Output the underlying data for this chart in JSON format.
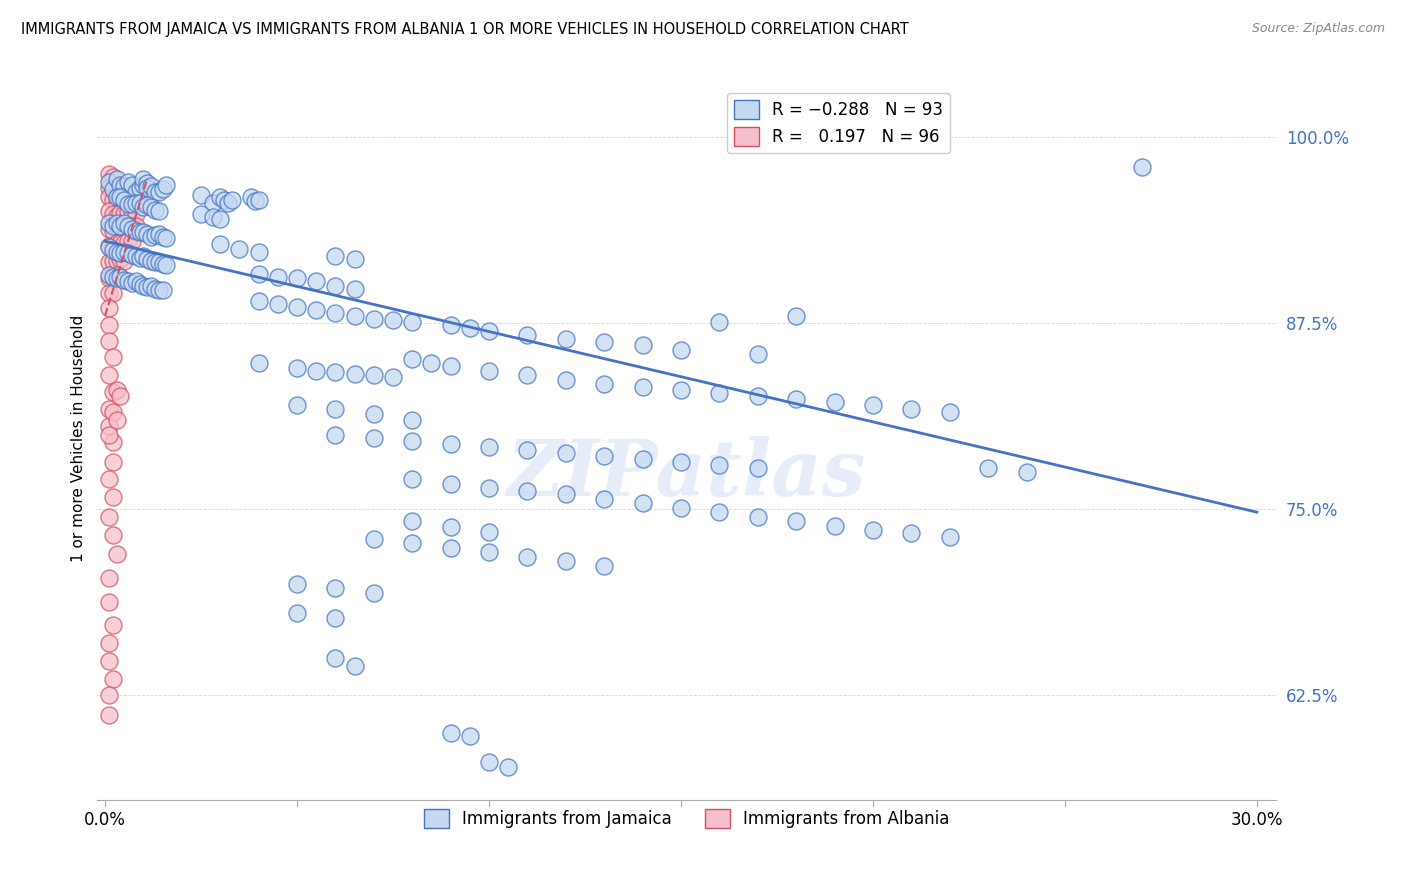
{
  "title": "IMMIGRANTS FROM JAMAICA VS IMMIGRANTS FROM ALBANIA 1 OR MORE VEHICLES IN HOUSEHOLD CORRELATION CHART",
  "source": "Source: ZipAtlas.com",
  "ylabel": "1 or more Vehicles in Household",
  "ytick_labels": [
    "62.5%",
    "75.0%",
    "87.5%",
    "100.0%"
  ],
  "ytick_values": [
    0.625,
    0.75,
    0.875,
    1.0
  ],
  "xlim": [
    -0.002,
    0.305
  ],
  "ylim": [
    0.555,
    1.04
  ],
  "jamaica_color": "#c5d9f0",
  "albania_color": "#f5c0cb",
  "jamaica_line_color": "#4472c4",
  "albania_line_color": "#d45060",
  "watermark": "ZIPatlas",
  "jamaica_trendline_x": [
    0.0,
    0.3
  ],
  "jamaica_trendline_y": [
    0.93,
    0.748
  ],
  "albania_trendline_x": [
    0.0,
    0.011
  ],
  "albania_trendline_y": [
    0.88,
    0.972
  ],
  "xtick_positions": [
    0.0,
    0.05,
    0.1,
    0.15,
    0.2,
    0.25,
    0.3
  ],
  "xtick_labels": [
    "0.0%",
    "",
    "",
    "",
    "",
    "",
    "30.0%"
  ],
  "jamaica_points": [
    [
      0.001,
      0.97
    ],
    [
      0.002,
      0.965
    ],
    [
      0.003,
      0.972
    ],
    [
      0.004,
      0.968
    ],
    [
      0.005,
      0.967
    ],
    [
      0.006,
      0.97
    ],
    [
      0.007,
      0.968
    ],
    [
      0.008,
      0.963
    ],
    [
      0.009,
      0.966
    ],
    [
      0.01,
      0.968
    ],
    [
      0.01,
      0.972
    ],
    [
      0.011,
      0.969
    ],
    [
      0.011,
      0.966
    ],
    [
      0.012,
      0.967
    ],
    [
      0.013,
      0.963
    ],
    [
      0.014,
      0.963
    ],
    [
      0.015,
      0.965
    ],
    [
      0.016,
      0.968
    ],
    [
      0.003,
      0.96
    ],
    [
      0.004,
      0.96
    ],
    [
      0.005,
      0.958
    ],
    [
      0.006,
      0.955
    ],
    [
      0.007,
      0.955
    ],
    [
      0.008,
      0.956
    ],
    [
      0.009,
      0.956
    ],
    [
      0.01,
      0.953
    ],
    [
      0.011,
      0.954
    ],
    [
      0.012,
      0.953
    ],
    [
      0.013,
      0.951
    ],
    [
      0.014,
      0.95
    ],
    [
      0.001,
      0.942
    ],
    [
      0.002,
      0.94
    ],
    [
      0.003,
      0.942
    ],
    [
      0.004,
      0.94
    ],
    [
      0.005,
      0.942
    ],
    [
      0.006,
      0.94
    ],
    [
      0.007,
      0.938
    ],
    [
      0.008,
      0.937
    ],
    [
      0.009,
      0.936
    ],
    [
      0.01,
      0.936
    ],
    [
      0.011,
      0.935
    ],
    [
      0.012,
      0.933
    ],
    [
      0.013,
      0.934
    ],
    [
      0.014,
      0.935
    ],
    [
      0.015,
      0.933
    ],
    [
      0.016,
      0.932
    ],
    [
      0.001,
      0.926
    ],
    [
      0.002,
      0.924
    ],
    [
      0.003,
      0.923
    ],
    [
      0.004,
      0.922
    ],
    [
      0.005,
      0.923
    ],
    [
      0.006,
      0.922
    ],
    [
      0.007,
      0.921
    ],
    [
      0.008,
      0.92
    ],
    [
      0.009,
      0.919
    ],
    [
      0.01,
      0.92
    ],
    [
      0.011,
      0.918
    ],
    [
      0.012,
      0.917
    ],
    [
      0.013,
      0.916
    ],
    [
      0.014,
      0.916
    ],
    [
      0.015,
      0.915
    ],
    [
      0.016,
      0.914
    ],
    [
      0.001,
      0.907
    ],
    [
      0.002,
      0.906
    ],
    [
      0.003,
      0.905
    ],
    [
      0.004,
      0.906
    ],
    [
      0.005,
      0.904
    ],
    [
      0.006,
      0.903
    ],
    [
      0.007,
      0.902
    ],
    [
      0.008,
      0.903
    ],
    [
      0.009,
      0.901
    ],
    [
      0.01,
      0.9
    ],
    [
      0.011,
      0.899
    ],
    [
      0.012,
      0.9
    ],
    [
      0.013,
      0.898
    ],
    [
      0.014,
      0.897
    ],
    [
      0.015,
      0.897
    ],
    [
      0.025,
      0.961
    ],
    [
      0.028,
      0.956
    ],
    [
      0.03,
      0.96
    ],
    [
      0.031,
      0.958
    ],
    [
      0.032,
      0.956
    ],
    [
      0.033,
      0.958
    ],
    [
      0.038,
      0.96
    ],
    [
      0.039,
      0.957
    ],
    [
      0.04,
      0.958
    ],
    [
      0.025,
      0.948
    ],
    [
      0.028,
      0.946
    ],
    [
      0.03,
      0.945
    ],
    [
      0.03,
      0.928
    ],
    [
      0.035,
      0.925
    ],
    [
      0.04,
      0.923
    ],
    [
      0.06,
      0.92
    ],
    [
      0.065,
      0.918
    ],
    [
      0.04,
      0.908
    ],
    [
      0.045,
      0.906
    ],
    [
      0.05,
      0.905
    ],
    [
      0.055,
      0.903
    ],
    [
      0.06,
      0.9
    ],
    [
      0.065,
      0.898
    ],
    [
      0.04,
      0.89
    ],
    [
      0.045,
      0.888
    ],
    [
      0.05,
      0.886
    ],
    [
      0.055,
      0.884
    ],
    [
      0.06,
      0.882
    ],
    [
      0.065,
      0.88
    ],
    [
      0.07,
      0.878
    ],
    [
      0.075,
      0.877
    ],
    [
      0.08,
      0.876
    ],
    [
      0.09,
      0.874
    ],
    [
      0.095,
      0.872
    ],
    [
      0.1,
      0.87
    ],
    [
      0.11,
      0.867
    ],
    [
      0.12,
      0.864
    ],
    [
      0.13,
      0.862
    ],
    [
      0.14,
      0.86
    ],
    [
      0.15,
      0.857
    ],
    [
      0.16,
      0.876
    ],
    [
      0.17,
      0.854
    ],
    [
      0.18,
      0.88
    ],
    [
      0.27,
      0.98
    ],
    [
      0.04,
      0.848
    ],
    [
      0.05,
      0.845
    ],
    [
      0.055,
      0.843
    ],
    [
      0.06,
      0.842
    ],
    [
      0.065,
      0.841
    ],
    [
      0.07,
      0.84
    ],
    [
      0.075,
      0.839
    ],
    [
      0.08,
      0.851
    ],
    [
      0.085,
      0.848
    ],
    [
      0.09,
      0.846
    ],
    [
      0.1,
      0.843
    ],
    [
      0.11,
      0.84
    ],
    [
      0.12,
      0.837
    ],
    [
      0.13,
      0.834
    ],
    [
      0.14,
      0.832
    ],
    [
      0.15,
      0.83
    ],
    [
      0.16,
      0.828
    ],
    [
      0.17,
      0.826
    ],
    [
      0.18,
      0.824
    ],
    [
      0.19,
      0.822
    ],
    [
      0.2,
      0.82
    ],
    [
      0.21,
      0.817
    ],
    [
      0.22,
      0.815
    ],
    [
      0.05,
      0.82
    ],
    [
      0.06,
      0.817
    ],
    [
      0.07,
      0.814
    ],
    [
      0.08,
      0.81
    ],
    [
      0.06,
      0.8
    ],
    [
      0.07,
      0.798
    ],
    [
      0.08,
      0.796
    ],
    [
      0.09,
      0.794
    ],
    [
      0.1,
      0.792
    ],
    [
      0.11,
      0.79
    ],
    [
      0.12,
      0.788
    ],
    [
      0.13,
      0.786
    ],
    [
      0.14,
      0.784
    ],
    [
      0.15,
      0.782
    ],
    [
      0.16,
      0.78
    ],
    [
      0.17,
      0.778
    ],
    [
      0.23,
      0.778
    ],
    [
      0.24,
      0.775
    ],
    [
      0.08,
      0.77
    ],
    [
      0.09,
      0.767
    ],
    [
      0.1,
      0.764
    ],
    [
      0.11,
      0.762
    ],
    [
      0.12,
      0.76
    ],
    [
      0.13,
      0.757
    ],
    [
      0.14,
      0.754
    ],
    [
      0.15,
      0.751
    ],
    [
      0.16,
      0.748
    ],
    [
      0.17,
      0.745
    ],
    [
      0.18,
      0.742
    ],
    [
      0.19,
      0.739
    ],
    [
      0.2,
      0.736
    ],
    [
      0.21,
      0.734
    ],
    [
      0.22,
      0.731
    ],
    [
      0.08,
      0.742
    ],
    [
      0.09,
      0.738
    ],
    [
      0.1,
      0.735
    ],
    [
      0.07,
      0.73
    ],
    [
      0.08,
      0.727
    ],
    [
      0.09,
      0.724
    ],
    [
      0.1,
      0.721
    ],
    [
      0.11,
      0.718
    ],
    [
      0.12,
      0.715
    ],
    [
      0.13,
      0.712
    ],
    [
      0.05,
      0.7
    ],
    [
      0.06,
      0.697
    ],
    [
      0.07,
      0.694
    ],
    [
      0.05,
      0.68
    ],
    [
      0.06,
      0.677
    ],
    [
      0.06,
      0.65
    ],
    [
      0.065,
      0.645
    ],
    [
      0.09,
      0.6
    ],
    [
      0.095,
      0.598
    ],
    [
      0.1,
      0.58
    ],
    [
      0.105,
      0.577
    ]
  ],
  "albania_points": [
    [
      0.001,
      0.975
    ],
    [
      0.002,
      0.973
    ],
    [
      0.001,
      0.966
    ],
    [
      0.002,
      0.964
    ],
    [
      0.001,
      0.96
    ],
    [
      0.002,
      0.958
    ],
    [
      0.003,
      0.963
    ],
    [
      0.003,
      0.958
    ],
    [
      0.004,
      0.968
    ],
    [
      0.004,
      0.963
    ],
    [
      0.005,
      0.967
    ],
    [
      0.005,
      0.962
    ],
    [
      0.003,
      0.953
    ],
    [
      0.004,
      0.958
    ],
    [
      0.005,
      0.955
    ],
    [
      0.006,
      0.962
    ],
    [
      0.006,
      0.958
    ],
    [
      0.007,
      0.962
    ],
    [
      0.001,
      0.95
    ],
    [
      0.002,
      0.948
    ],
    [
      0.003,
      0.947
    ],
    [
      0.004,
      0.949
    ],
    [
      0.005,
      0.948
    ],
    [
      0.006,
      0.95
    ],
    [
      0.007,
      0.95
    ],
    [
      0.008,
      0.948
    ],
    [
      0.001,
      0.938
    ],
    [
      0.002,
      0.937
    ],
    [
      0.003,
      0.94
    ],
    [
      0.004,
      0.94
    ],
    [
      0.005,
      0.939
    ],
    [
      0.006,
      0.94
    ],
    [
      0.007,
      0.94
    ],
    [
      0.008,
      0.94
    ],
    [
      0.001,
      0.927
    ],
    [
      0.002,
      0.927
    ],
    [
      0.003,
      0.929
    ],
    [
      0.004,
      0.929
    ],
    [
      0.005,
      0.929
    ],
    [
      0.006,
      0.93
    ],
    [
      0.007,
      0.93
    ],
    [
      0.001,
      0.916
    ],
    [
      0.002,
      0.917
    ],
    [
      0.003,
      0.917
    ],
    [
      0.004,
      0.918
    ],
    [
      0.005,
      0.917
    ],
    [
      0.001,
      0.905
    ],
    [
      0.002,
      0.906
    ],
    [
      0.003,
      0.907
    ],
    [
      0.001,
      0.895
    ],
    [
      0.002,
      0.895
    ],
    [
      0.001,
      0.885
    ],
    [
      0.001,
      0.874
    ],
    [
      0.001,
      0.863
    ],
    [
      0.002,
      0.852
    ],
    [
      0.001,
      0.84
    ],
    [
      0.002,
      0.829
    ],
    [
      0.001,
      0.817
    ],
    [
      0.001,
      0.806
    ],
    [
      0.002,
      0.795
    ],
    [
      0.003,
      0.83
    ],
    [
      0.004,
      0.826
    ],
    [
      0.002,
      0.815
    ],
    [
      0.003,
      0.81
    ],
    [
      0.001,
      0.8
    ],
    [
      0.002,
      0.782
    ],
    [
      0.001,
      0.77
    ],
    [
      0.002,
      0.758
    ],
    [
      0.001,
      0.745
    ],
    [
      0.002,
      0.733
    ],
    [
      0.003,
      0.72
    ],
    [
      0.001,
      0.704
    ],
    [
      0.001,
      0.688
    ],
    [
      0.002,
      0.672
    ],
    [
      0.001,
      0.66
    ],
    [
      0.001,
      0.648
    ],
    [
      0.002,
      0.636
    ],
    [
      0.001,
      0.625
    ],
    [
      0.001,
      0.612
    ]
  ]
}
